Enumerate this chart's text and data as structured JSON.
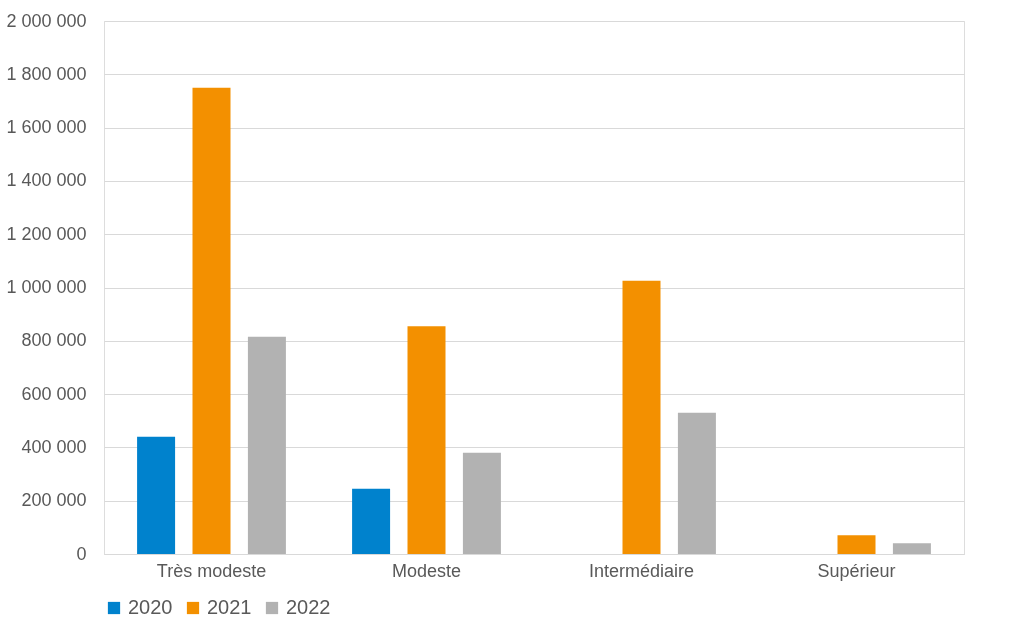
{
  "chart_data": {
    "type": "bar",
    "categories": [
      "Très modeste",
      "Modeste",
      "Intermédiaire",
      "Supérieur"
    ],
    "series": [
      {
        "name": "2020",
        "color": "#0082cd",
        "values": [
          440000,
          245000,
          null,
          null
        ]
      },
      {
        "name": "2021",
        "color": "#f39000",
        "values": [
          1750000,
          855000,
          1025000,
          70000
        ]
      },
      {
        "name": "2022",
        "color": "#b2b2b2",
        "values": [
          815000,
          380000,
          530000,
          40000
        ]
      }
    ],
    "ylim": [
      0,
      2000000
    ],
    "yticks": [
      {
        "value": 0,
        "label": "0"
      },
      {
        "value": 200000,
        "label": "200 000"
      },
      {
        "value": 400000,
        "label": "400 000"
      },
      {
        "value": 600000,
        "label": "600 000"
      },
      {
        "value": 800000,
        "label": "800 000"
      },
      {
        "value": 1000000,
        "label": "1 000 000"
      },
      {
        "value": 1200000,
        "label": "1 200 000"
      },
      {
        "value": 1400000,
        "label": "1 400 000"
      },
      {
        "value": 1600000,
        "label": "1 600 000"
      },
      {
        "value": 1800000,
        "label": "1 800 000"
      },
      {
        "value": 2000000,
        "label": "2 000 000"
      }
    ],
    "grid": "y",
    "legend": "bottom"
  }
}
